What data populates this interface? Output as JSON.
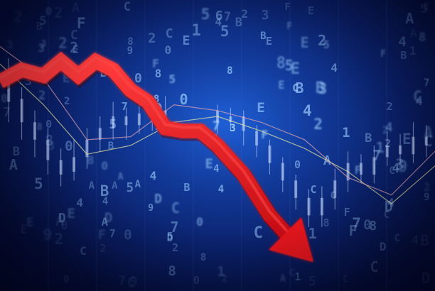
{
  "colors": {
    "arrow": "#e8141a",
    "arrow_highlight": "#ff4a4a",
    "candles": "#c9dcff",
    "line_a": "#e6e6a0",
    "line_b": "#e8a7b0",
    "glyph": "#9fd0ff",
    "grid_line": "#5c86d6"
  },
  "glyphs": "4504F0C0E2C54B5D2C7C2E2A48A30EBF314917C9B7A2C5E0A7B4D8F50A3E2DB01C2F8A9E3A20478F8CB1B85EC2D3F7E6C3C",
  "chart_data": {
    "type": "line",
    "title": "",
    "xlabel": "",
    "ylabel": "",
    "series": [
      {
        "name": "price-line-a",
        "x": [
          0,
          10,
          20,
          30,
          40,
          50,
          60,
          70,
          80,
          90,
          100
        ],
        "values": [
          78,
          64,
          47,
          50,
          58,
          60,
          55,
          49,
          41,
          30,
          43
        ]
      },
      {
        "name": "price-line-b",
        "x": [
          0,
          10,
          20,
          30,
          40,
          50,
          60,
          70,
          80,
          90,
          100
        ],
        "values": [
          84,
          73,
          52,
          53,
          64,
          62,
          58,
          52,
          39,
          33,
          48
        ]
      },
      {
        "name": "downtrend-arrow",
        "x": [
          0,
          5,
          10,
          14,
          18,
          22,
          26,
          30,
          34,
          38,
          42,
          46,
          50,
          56,
          62,
          68,
          72
        ],
        "values": [
          72,
          76,
          74,
          79,
          74,
          79,
          76,
          69,
          65,
          56,
          55,
          55,
          50,
          40,
          26,
          16,
          10
        ]
      }
    ],
    "candles": [
      {
        "x": 2,
        "o": 72,
        "c": 65,
        "h": 80,
        "l": 58
      },
      {
        "x": 5,
        "o": 66,
        "c": 58,
        "h": 70,
        "l": 52
      },
      {
        "x": 8,
        "o": 58,
        "c": 52,
        "h": 62,
        "l": 46
      },
      {
        "x": 11,
        "o": 52,
        "c": 45,
        "h": 56,
        "l": 40
      },
      {
        "x": 14,
        "o": 45,
        "c": 40,
        "h": 49,
        "l": 36
      },
      {
        "x": 17,
        "o": 41,
        "c": 46,
        "h": 52,
        "l": 38
      },
      {
        "x": 20,
        "o": 46,
        "c": 52,
        "h": 56,
        "l": 42
      },
      {
        "x": 23,
        "o": 52,
        "c": 56,
        "h": 60,
        "l": 48
      },
      {
        "x": 26,
        "o": 56,
        "c": 60,
        "h": 65,
        "l": 52
      },
      {
        "x": 29,
        "o": 60,
        "c": 57,
        "h": 63,
        "l": 52
      },
      {
        "x": 32,
        "o": 57,
        "c": 61,
        "h": 66,
        "l": 54
      },
      {
        "x": 35,
        "o": 61,
        "c": 58,
        "h": 64,
        "l": 55
      },
      {
        "x": 38,
        "o": 58,
        "c": 62,
        "h": 67,
        "l": 55
      },
      {
        "x": 50,
        "o": 62,
        "c": 58,
        "h": 64,
        "l": 54
      },
      {
        "x": 53,
        "o": 58,
        "c": 60,
        "h": 63,
        "l": 55
      },
      {
        "x": 56,
        "o": 60,
        "c": 55,
        "h": 62,
        "l": 50
      },
      {
        "x": 59,
        "o": 55,
        "c": 50,
        "h": 57,
        "l": 46
      },
      {
        "x": 62,
        "o": 50,
        "c": 44,
        "h": 52,
        "l": 40
      },
      {
        "x": 65,
        "o": 44,
        "c": 38,
        "h": 46,
        "l": 34
      },
      {
        "x": 68,
        "o": 38,
        "c": 32,
        "h": 40,
        "l": 28
      },
      {
        "x": 71,
        "o": 32,
        "c": 26,
        "h": 35,
        "l": 22
      },
      {
        "x": 74,
        "o": 26,
        "c": 32,
        "h": 36,
        "l": 22
      },
      {
        "x": 77,
        "o": 32,
        "c": 38,
        "h": 42,
        "l": 28
      },
      {
        "x": 80,
        "o": 38,
        "c": 44,
        "h": 48,
        "l": 34
      },
      {
        "x": 83,
        "o": 44,
        "c": 40,
        "h": 47,
        "l": 37
      },
      {
        "x": 86,
        "o": 40,
        "c": 46,
        "h": 50,
        "l": 37
      },
      {
        "x": 89,
        "o": 46,
        "c": 50,
        "h": 55,
        "l": 43
      },
      {
        "x": 92,
        "o": 50,
        "c": 47,
        "h": 54,
        "l": 44
      },
      {
        "x": 95,
        "o": 47,
        "c": 53,
        "h": 58,
        "l": 44
      },
      {
        "x": 98,
        "o": 53,
        "c": 50,
        "h": 57,
        "l": 46
      }
    ]
  }
}
